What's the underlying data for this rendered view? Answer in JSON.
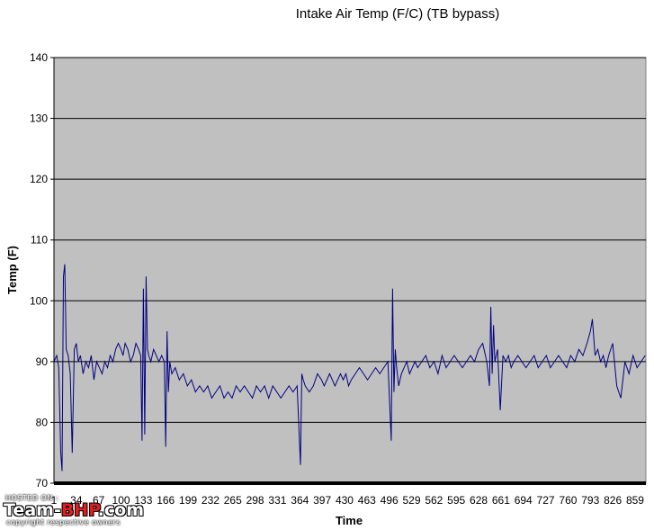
{
  "chart_data": {
    "type": "line",
    "title": "Intake Air Temp (F/C) (TB bypass)",
    "xlabel": "Time",
    "ylabel": "Temp (F)",
    "ylim": [
      70,
      140
    ],
    "yticks": [
      70,
      80,
      90,
      100,
      110,
      120,
      130,
      140
    ],
    "xlim": [
      1,
      875
    ],
    "xticks": [
      1,
      34,
      67,
      100,
      133,
      166,
      199,
      232,
      265,
      298,
      331,
      364,
      397,
      430,
      463,
      496,
      529,
      562,
      595,
      628,
      661,
      694,
      727,
      760,
      793,
      826,
      859
    ],
    "xtick_labels": [
      "1",
      "34",
      "67",
      "100",
      "133",
      "166",
      "199",
      "232",
      "265",
      "298",
      "331",
      "364",
      "397",
      "430",
      "463",
      "496",
      "529",
      "562",
      "595",
      "628",
      "661",
      "694",
      "727",
      "760",
      "793",
      "826",
      "859"
    ],
    "grid": "horizontal",
    "background_color": "#c0c0c0",
    "line_color": "#000080",
    "series": [
      {
        "x": [
          1,
          5,
          8,
          11,
          13,
          15,
          17,
          19,
          22,
          25,
          28,
          31,
          34,
          37,
          40,
          44,
          48,
          52,
          56,
          60,
          64,
          68,
          72,
          76,
          80,
          84,
          88,
          92,
          96,
          100,
          103,
          106,
          110,
          114,
          118,
          122,
          126,
          129,
          131,
          133,
          135,
          137,
          139,
          141,
          144,
          148,
          152,
          156,
          160,
          164,
          166,
          168,
          170,
          172,
          175,
          180,
          186,
          192,
          198,
          204,
          210,
          216,
          222,
          228,
          234,
          240,
          246,
          252,
          258,
          264,
          270,
          276,
          282,
          288,
          294,
          300,
          306,
          312,
          318,
          324,
          330,
          336,
          342,
          348,
          354,
          360,
          365,
          367,
          369,
          372,
          378,
          384,
          390,
          396,
          400,
          404,
          408,
          412,
          416,
          420,
          424,
          428,
          432,
          436,
          440,
          446,
          452,
          458,
          464,
          470,
          476,
          482,
          488,
          494,
          499,
          501,
          503,
          505,
          507,
          510,
          514,
          518,
          522,
          526,
          530,
          534,
          538,
          544,
          550,
          556,
          562,
          568,
          574,
          580,
          586,
          592,
          598,
          604,
          610,
          616,
          622,
          628,
          634,
          640,
          644,
          646,
          648,
          650,
          652,
          656,
          660,
          664,
          668,
          672,
          676,
          680,
          686,
          692,
          698,
          704,
          710,
          716,
          722,
          728,
          734,
          740,
          746,
          752,
          758,
          764,
          770,
          776,
          782,
          788,
          793,
          796,
          800,
          804,
          808,
          812,
          816,
          820,
          826,
          832,
          838,
          844,
          850,
          856,
          862,
          868,
          874
        ],
        "y": [
          90,
          91,
          89,
          75,
          72,
          104,
          106,
          92,
          91,
          88,
          75,
          92,
          93,
          90,
          91,
          88,
          90,
          89,
          91,
          87,
          90,
          89,
          88,
          90,
          89,
          91,
          90,
          92,
          93,
          92,
          91,
          93,
          92,
          90,
          91,
          93,
          92,
          91,
          77,
          102,
          78,
          104,
          92,
          91,
          90,
          92,
          91,
          90,
          91,
          90,
          76,
          95,
          85,
          90,
          88,
          89,
          87,
          88,
          86,
          87,
          85,
          86,
          85,
          86,
          84,
          85,
          86,
          84,
          85,
          84,
          86,
          85,
          86,
          85,
          84,
          86,
          85,
          86,
          84,
          86,
          85,
          84,
          85,
          86,
          85,
          86,
          73,
          88,
          87,
          86,
          85,
          86,
          88,
          87,
          86,
          87,
          88,
          87,
          86,
          87,
          88,
          87,
          88,
          86,
          87,
          88,
          89,
          88,
          87,
          88,
          89,
          88,
          89,
          90,
          77,
          102,
          85,
          92,
          89,
          86,
          88,
          89,
          90,
          88,
          89,
          90,
          89,
          90,
          91,
          89,
          90,
          88,
          91,
          89,
          90,
          91,
          90,
          89,
          90,
          91,
          90,
          92,
          93,
          90,
          86,
          99,
          88,
          96,
          90,
          92,
          82,
          91,
          90,
          91,
          89,
          90,
          91,
          90,
          89,
          90,
          91,
          89,
          90,
          91,
          89,
          90,
          91,
          90,
          89,
          91,
          90,
          92,
          91,
          93,
          95,
          97,
          91,
          92,
          90,
          91,
          89,
          91,
          93,
          86,
          84,
          90,
          88,
          91,
          89,
          90,
          91
        ]
      }
    ]
  },
  "watermark": {
    "hosted": "HOSTED ON :",
    "logo_left": "Team-",
    "logo_accent": "BHP",
    "logo_right": ".com",
    "copyright": "copyright respective owners"
  }
}
